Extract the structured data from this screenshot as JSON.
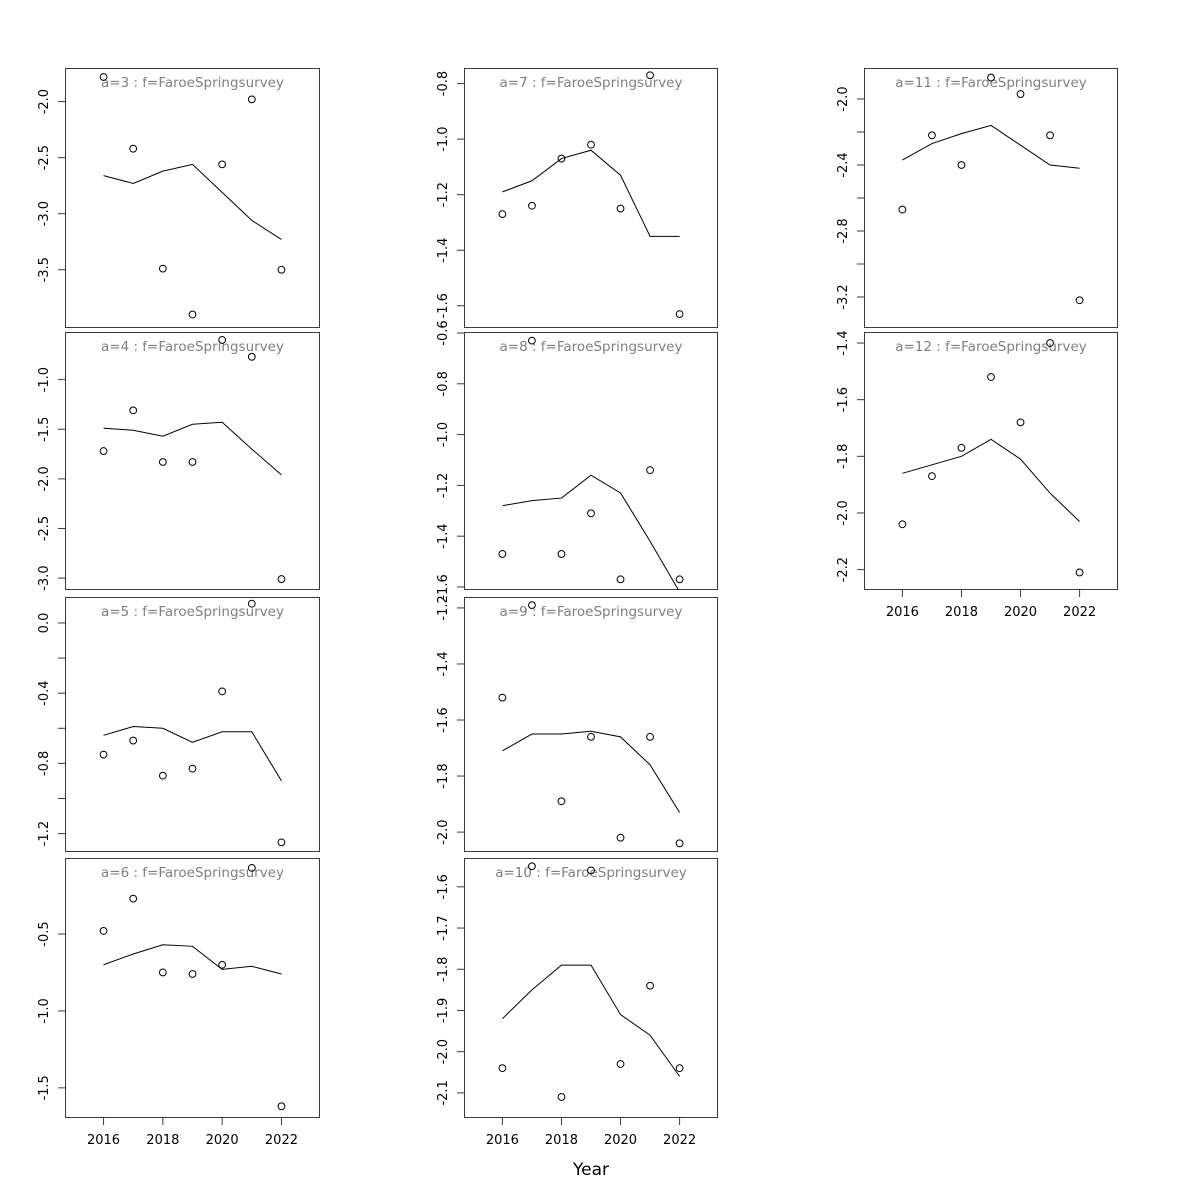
{
  "chart_data": {
    "type": "line",
    "xlabel": "Year",
    "x": [
      2016,
      2017,
      2018,
      2019,
      2020,
      2021,
      2022
    ],
    "x_ticks": [
      2016,
      2018,
      2020,
      2022
    ],
    "x_tick_labels": [
      "2016",
      "2018",
      "2020",
      "2022"
    ],
    "xlim": [
      2014.7,
      2023.3
    ],
    "grid": "off",
    "legend": "none",
    "styles": {
      "background": "#ffffff",
      "point_color": "#000000",
      "line_color": "#000000",
      "box_color": "#3a3a3a",
      "title_color": "#7f7f7f",
      "tick_label_color": "#000000"
    },
    "series_meaning": {
      "points": "observed survey index (open circles)",
      "line": "fitted values"
    },
    "panels": [
      {
        "name": "a3",
        "title": "a=3 : f=FaroeSpringsurvey",
        "col": 0,
        "row": 0,
        "ylim": [
          -4.02,
          -1.7
        ],
        "yticks": [
          -2.0,
          -2.5,
          -3.0,
          -3.5
        ],
        "ytick_labels": [
          "-2.0",
          "-2.5",
          "-3.0",
          "-3.5"
        ],
        "yticks_minor": [],
        "points": [
          -1.78,
          -2.42,
          -3.49,
          -3.9,
          -2.56,
          -1.98,
          -3.5
        ],
        "line": [
          -2.66,
          -2.73,
          -2.62,
          -2.56,
          -2.81,
          -3.06,
          -3.23
        ],
        "show_x_axis": false
      },
      {
        "name": "a4",
        "title": "a=4 : f=FaroeSpringsurvey",
        "col": 0,
        "row": 1,
        "ylim": [
          -3.12,
          -0.52
        ],
        "yticks": [
          -1.0,
          -1.5,
          -2.0,
          -2.5,
          -3.0
        ],
        "ytick_labels": [
          "-1.0",
          "-1.5",
          "-2.0",
          "-2.5",
          "-3.0"
        ],
        "yticks_minor": [],
        "points": [
          -1.72,
          -1.31,
          -1.83,
          -1.83,
          -0.6,
          -0.77,
          -3.01
        ],
        "line": [
          -1.49,
          -1.51,
          -1.57,
          -1.45,
          -1.43,
          -1.7,
          -1.96
        ],
        "show_x_axis": false
      },
      {
        "name": "a5",
        "title": "a=5 : f=FaroeSpringsurvey",
        "col": 0,
        "row": 2,
        "ylim": [
          -1.305,
          0.148
        ],
        "yticks": [
          0.0,
          -0.4,
          -0.8,
          -1.2
        ],
        "ytick_labels": [
          "0.0",
          "-0.4",
          "-0.8",
          "-1.2"
        ],
        "yticks_minor": [
          -0.2,
          -0.6,
          -1.0
        ],
        "points": [
          -0.75,
          -0.67,
          -0.87,
          -0.83,
          -0.39,
          0.11,
          -1.25
        ],
        "line": [
          -0.64,
          -0.59,
          -0.6,
          -0.68,
          -0.62,
          -0.62,
          -0.9
        ],
        "show_x_axis": false
      },
      {
        "name": "a6",
        "title": "a=6 : f=FaroeSpringsurvey",
        "col": 0,
        "row": 3,
        "ylim": [
          -1.696,
          -0.006
        ],
        "yticks": [
          -0.5,
          -1.0,
          -1.5
        ],
        "ytick_labels": [
          "-0.5",
          "-1.0",
          "-1.5"
        ],
        "yticks_minor": [],
        "points": [
          -0.48,
          -0.27,
          -0.75,
          -0.76,
          -0.7,
          -0.07,
          -1.62
        ],
        "line": [
          -0.7,
          -0.63,
          -0.57,
          -0.58,
          -0.73,
          -0.71,
          -0.76
        ],
        "show_x_axis": true
      },
      {
        "name": "a7",
        "title": "a=7 : f=FaroeSpringsurvey",
        "col": 1,
        "row": 0,
        "ylim": [
          -1.68,
          -0.744
        ],
        "yticks": [
          -0.8,
          -1.0,
          -1.2,
          -1.4,
          -1.6
        ],
        "ytick_labels": [
          "-0.8",
          "-1.0",
          "-1.2",
          "-1.4",
          "-1.6"
        ],
        "yticks_minor": [],
        "points": [
          -1.27,
          -1.24,
          -1.07,
          -1.02,
          -1.25,
          -0.77,
          -1.63
        ],
        "line": [
          -1.19,
          -1.15,
          -1.07,
          -1.04,
          -1.13,
          -1.35,
          -1.35
        ],
        "show_x_axis": false
      },
      {
        "name": "a8",
        "title": "a=8 : f=FaroeSpringsurvey",
        "col": 1,
        "row": 1,
        "ylim": [
          -1.612,
          -0.596
        ],
        "yticks": [
          -0.6,
          -0.8,
          -1.0,
          -1.2,
          -1.4,
          -1.6
        ],
        "ytick_labels": [
          "-0.6",
          "-0.8",
          "-1.0",
          "-1.2",
          "-1.4",
          "-1.6"
        ],
        "yticks_minor": [],
        "points": [
          -1.47,
          -0.63,
          -1.47,
          -1.31,
          -1.57,
          -1.14,
          -1.57
        ],
        "line": [
          -1.28,
          -1.26,
          -1.25,
          -1.16,
          -1.23,
          -1.42,
          -1.62
        ],
        "show_x_axis": false
      },
      {
        "name": "a9",
        "title": "a=9 : f=FaroeSpringsurvey",
        "col": 1,
        "row": 2,
        "ylim": [
          -2.071,
          -1.161
        ],
        "yticks": [
          -1.2,
          -1.4,
          -1.6,
          -1.8,
          -2.0
        ],
        "ytick_labels": [
          "-1.2",
          "-1.4",
          "-1.6",
          "-1.8",
          "-2.0"
        ],
        "yticks_minor": [],
        "points": [
          -1.52,
          -1.19,
          -1.89,
          -1.66,
          -2.02,
          -1.66,
          -2.04
        ],
        "line": [
          -1.71,
          -1.65,
          -1.65,
          -1.64,
          -1.66,
          -1.76,
          -1.93
        ],
        "show_x_axis": false
      },
      {
        "name": "a10",
        "title": "a=10 : f=FaroeSpringsurvey",
        "col": 1,
        "row": 3,
        "ylim": [
          -2.161,
          -1.53
        ],
        "yticks": [
          -1.6,
          -1.7,
          -1.8,
          -1.9,
          -2.0,
          -2.1
        ],
        "ytick_labels": [
          "-1.6",
          "-1.7",
          "-1.8",
          "-1.9",
          "-2.0",
          "-2.1"
        ],
        "yticks_minor": [],
        "points": [
          -2.04,
          -1.55,
          -2.11,
          -1.56,
          -2.03,
          -1.84,
          -2.04
        ],
        "line": [
          -1.92,
          -1.85,
          -1.79,
          -1.79,
          -1.91,
          -1.96,
          -2.06
        ],
        "show_x_axis": true
      },
      {
        "name": "a11",
        "title": "a=11 : f=FaroeSpringsurvey",
        "col": 2,
        "row": 0,
        "ylim": [
          -3.388,
          -1.812
        ],
        "yticks": [
          -2.0,
          -2.4,
          -2.8,
          -3.2
        ],
        "ytick_labels": [
          "-2.0",
          "-2.4",
          "-2.8",
          "-3.2"
        ],
        "yticks_minor": [
          -2.2,
          -2.6,
          -3.0
        ],
        "points": [
          -2.67,
          -2.22,
          -2.4,
          -1.87,
          -1.97,
          -2.22,
          -3.22
        ],
        "line": [
          -2.37,
          -2.27,
          -2.21,
          -2.16,
          -2.28,
          -2.4,
          -2.42
        ],
        "show_x_axis": false
      },
      {
        "name": "a12",
        "title": "a=12 : f=FaroeSpringsurvey",
        "col": 2,
        "row": 1,
        "ylim": [
          -2.272,
          -1.361
        ],
        "yticks": [
          -1.4,
          -1.6,
          -1.8,
          -2.0,
          -2.2
        ],
        "ytick_labels": [
          "-1.4",
          "-1.6",
          "-1.8",
          "-2.0",
          "-2.2"
        ],
        "yticks_minor": [],
        "points": [
          -2.04,
          -1.87,
          -1.77,
          -1.52,
          -1.68,
          -1.4,
          -2.21
        ],
        "line": [
          -1.86,
          -1.83,
          -1.8,
          -1.74,
          -1.81,
          -1.93,
          -2.03
        ],
        "show_x_axis": true
      }
    ]
  }
}
